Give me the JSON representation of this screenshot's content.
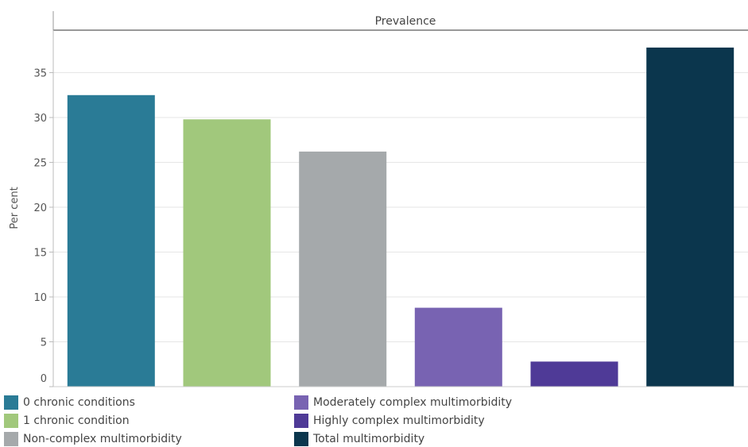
{
  "chart_data": {
    "type": "bar",
    "title": "Prevalence",
    "ylabel": "Per cent",
    "xlabel": "",
    "ylim": [
      0,
      38
    ],
    "yticks": [
      0,
      5,
      10,
      15,
      20,
      25,
      30,
      35
    ],
    "grid": true,
    "legend_position": "bottom",
    "categories": [
      "0 chronic conditions",
      "1 chronic condition",
      "Non-complex multimorbidity",
      "Moderately complex multimorbidity",
      "Highly complex multimorbidity",
      "Total multimorbidity"
    ],
    "values": [
      32.5,
      29.8,
      26.2,
      8.8,
      2.8,
      37.8
    ],
    "colors": [
      "#2a7b96",
      "#a1c87c",
      "#a5a9ab",
      "#7863b2",
      "#4f3a97",
      "#0b364d"
    ]
  }
}
